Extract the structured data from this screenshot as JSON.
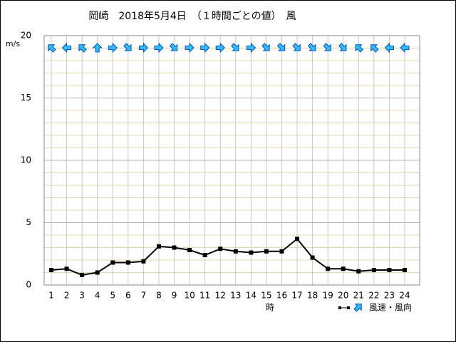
{
  "chart_data": {
    "type": "line",
    "title": "岡崎　2018年5月4日　（１時間ごとの値）　風",
    "y_axis_label": "m/s",
    "x_axis_label": "時",
    "legend_label": "風速・風向",
    "categories": [
      "1",
      "2",
      "3",
      "4",
      "5",
      "6",
      "7",
      "8",
      "9",
      "10",
      "11",
      "12",
      "13",
      "14",
      "15",
      "16",
      "17",
      "18",
      "19",
      "20",
      "21",
      "22",
      "23",
      "24"
    ],
    "series": [
      {
        "name": "風速",
        "color": "#000000",
        "values": [
          1.2,
          1.3,
          0.8,
          1.0,
          1.8,
          1.8,
          1.9,
          3.1,
          3.0,
          2.8,
          2.4,
          2.9,
          2.7,
          2.6,
          2.7,
          2.7,
          3.7,
          2.2,
          1.3,
          1.3,
          1.1,
          1.2,
          1.2,
          1.2
        ]
      }
    ],
    "arrow_angles": [
      315,
      270,
      315,
      0,
      90,
      135,
      90,
      90,
      135,
      90,
      90,
      90,
      135,
      90,
      135,
      135,
      135,
      135,
      135,
      135,
      315,
      315,
      270,
      270
    ],
    "arrow_color": "#33bbff",
    "ylim": [
      0,
      20
    ],
    "yticks": [
      0,
      5,
      10,
      15,
      20
    ],
    "minor_grid_step": 1,
    "grid": true
  }
}
